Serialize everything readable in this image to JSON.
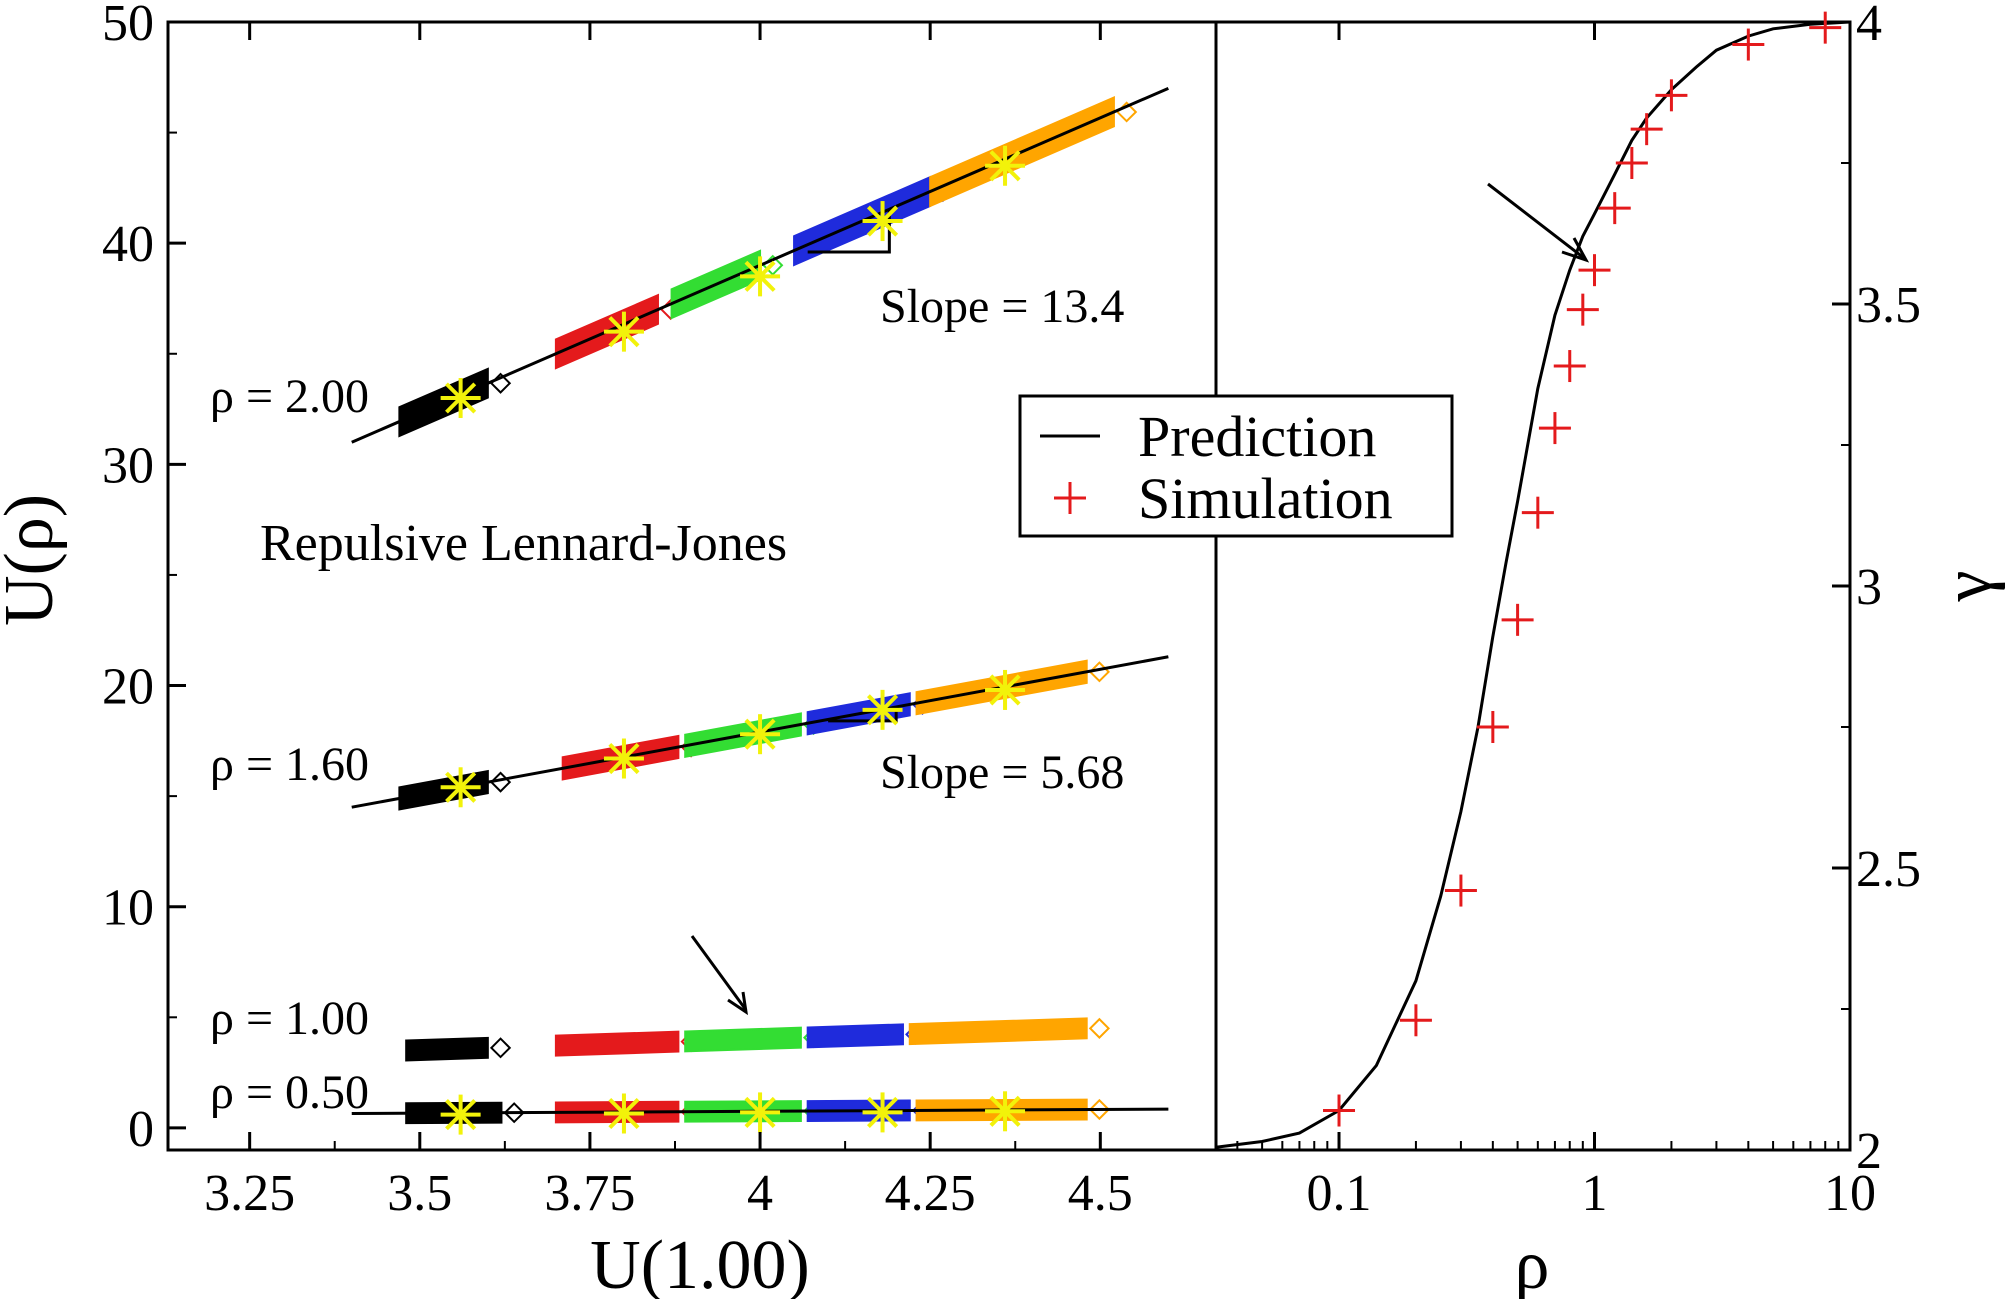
{
  "colors": {
    "black": "#000000",
    "red": "#e41a1c",
    "green": "#33dd33",
    "blue": "#1f2bdc",
    "orange": "#ffa500",
    "yellow": "#f2f20a",
    "sim_marker": "#e41a1c"
  },
  "chart_data": [
    {
      "type": "scatter",
      "xlabel": "U(1.00)",
      "ylabel": "U(ρ)",
      "xlim": [
        3.13,
        4.67
      ],
      "ylim": [
        -1,
        50
      ],
      "xticks": [
        3.25,
        3.5,
        3.75,
        4,
        4.25,
        4.5
      ],
      "xtick_labels": [
        "3.25",
        "3.5",
        "3.75",
        "4",
        "4.25",
        "4.5"
      ],
      "yticks": [
        0,
        10,
        20,
        30,
        40,
        50
      ],
      "ytick_labels": [
        "0",
        "10",
        "20",
        "30",
        "40",
        "50"
      ],
      "grid": false,
      "annotations": {
        "title_note": "Repulsive Lennard-Jones",
        "slope_high": "Slope = 13.4",
        "slope_mid": "Slope = 5.68",
        "rho_labels": [
          "ρ = 2.00",
          "ρ = 1.60",
          "ρ = 1.00",
          "ρ = 0.50"
        ]
      },
      "color_groups": [
        "black",
        "red",
        "green",
        "blue",
        "orange"
      ],
      "groups": [
        {
          "label": "ρ = 2.00",
          "segments": [
            [
              3.47,
              3.6
            ],
            [
              3.7,
              3.85
            ],
            [
              3.87,
              4.0
            ],
            [
              4.05,
              4.25
            ],
            [
              4.25,
              4.52
            ]
          ],
          "line": {
            "x": [
              3.4,
              4.6
            ],
            "y": [
              31.0,
              47.0
            ]
          },
          "stars": {
            "x": [
              3.56,
              3.8,
              4.0,
              4.18,
              4.36
            ],
            "y": [
              33.0,
              36.0,
              38.5,
              41.0,
              43.5
            ]
          },
          "slope_triangle": {
            "x1": 4.07,
            "x2": 4.19,
            "y1": 39.6
          }
        },
        {
          "label": "ρ = 1.60",
          "segments": [
            [
              3.47,
              3.6
            ],
            [
              3.71,
              3.88
            ],
            [
              3.89,
              4.06
            ],
            [
              4.07,
              4.22
            ],
            [
              4.23,
              4.48
            ]
          ],
          "line": {
            "x": [
              3.4,
              4.6
            ],
            "y": [
              14.5,
              21.3
            ]
          },
          "stars": {
            "x": [
              3.56,
              3.8,
              4.0,
              4.18,
              4.36
            ],
            "y": [
              15.4,
              16.7,
              17.8,
              18.9,
              19.8
            ]
          },
          "slope_triangle": {
            "x1": 4.1,
            "x2": 4.2,
            "y1": 18.4
          }
        },
        {
          "label": "ρ = 1.00",
          "segments": [
            [
              3.48,
              3.6
            ],
            [
              3.7,
              3.88
            ],
            [
              3.89,
              4.06
            ],
            [
              4.07,
              4.21
            ],
            [
              4.22,
              4.48
            ]
          ],
          "line": null,
          "stars": null
        },
        {
          "label": "ρ = 0.50",
          "segments": [
            [
              3.48,
              3.62
            ],
            [
              3.7,
              3.88
            ],
            [
              3.89,
              4.06
            ],
            [
              4.07,
              4.22
            ],
            [
              4.23,
              4.48
            ]
          ],
          "line": {
            "x": [
              3.4,
              4.6
            ],
            "y": [
              0.65,
              0.85
            ]
          },
          "stars": {
            "x": [
              3.56,
              3.8,
              4.0,
              4.18,
              4.36
            ],
            "y": [
              0.6,
              0.65,
              0.7,
              0.7,
              0.75
            ]
          }
        }
      ]
    },
    {
      "type": "line",
      "xlabel": "ρ",
      "ylabel": "γ",
      "x_scale": "log",
      "xlim": [
        0.033,
        10
      ],
      "ylim": [
        2,
        4
      ],
      "xticks": [
        0.1,
        1,
        10
      ],
      "xtick_labels": [
        "0.1",
        "1",
        "10"
      ],
      "yticks": [
        2,
        2.5,
        3,
        3.5,
        4
      ],
      "ytick_labels": [
        "2",
        "2.5",
        "3",
        "3.5",
        "4"
      ],
      "grid": false,
      "legend": {
        "position": "top-left",
        "entries": [
          "Prediction",
          "Simulation"
        ]
      },
      "series": [
        {
          "name": "Prediction",
          "x": [
            0.033,
            0.05,
            0.07,
            0.1,
            0.14,
            0.2,
            0.25,
            0.3,
            0.35,
            0.4,
            0.45,
            0.5,
            0.6,
            0.7,
            0.8,
            0.9,
            1.0,
            1.2,
            1.4,
            1.6,
            2.0,
            2.5,
            3.0,
            4.0,
            5.0,
            7.0,
            10.0
          ],
          "y": [
            2.005,
            2.015,
            2.03,
            2.07,
            2.15,
            2.3,
            2.45,
            2.6,
            2.75,
            2.91,
            3.04,
            3.15,
            3.35,
            3.48,
            3.56,
            3.62,
            3.66,
            3.73,
            3.79,
            3.83,
            3.88,
            3.92,
            3.95,
            3.975,
            3.988,
            3.996,
            4.0
          ]
        },
        {
          "name": "Simulation",
          "x": [
            0.1,
            0.2,
            0.3,
            0.4,
            0.5,
            0.6,
            0.7,
            0.8,
            0.9,
            1.0,
            1.2,
            1.4,
            1.6,
            2.0,
            4.0,
            8.0
          ],
          "y": [
            2.07,
            2.23,
            2.46,
            2.75,
            2.94,
            3.13,
            3.28,
            3.39,
            3.49,
            3.56,
            3.67,
            3.75,
            3.81,
            3.87,
            3.96,
            3.99
          ]
        }
      ]
    }
  ]
}
